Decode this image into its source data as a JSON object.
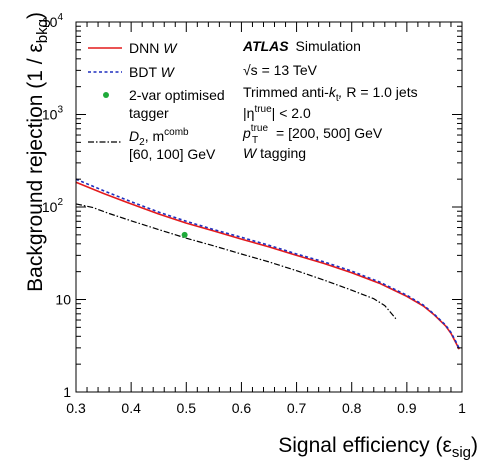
{
  "chart_data": {
    "type": "line",
    "xlabel": "Signal efficiency (ε",
    "xlabel_sub": "sig",
    "xlabel_close": ")",
    "ylabel": "Background rejection (1 / ε",
    "ylabel_sub": "bkg",
    "ylabel_close": ")",
    "xlim": [
      0.3,
      1.0
    ],
    "ylim": [
      1,
      10000
    ],
    "yscale": "log",
    "grid": false,
    "legend_position": "top-left",
    "x_ticks": [
      {
        "value": 0.3,
        "label": "0.3"
      },
      {
        "value": 0.4,
        "label": "0.4"
      },
      {
        "value": 0.5,
        "label": "0.5"
      },
      {
        "value": 0.6,
        "label": "0.6"
      },
      {
        "value": 0.7,
        "label": "0.7"
      },
      {
        "value": 0.8,
        "label": "0.8"
      },
      {
        "value": 0.9,
        "label": "0.9"
      },
      {
        "value": 1.0,
        "label": "1"
      }
    ],
    "y_ticks": [
      {
        "value": 1,
        "base": "1",
        "exp": ""
      },
      {
        "value": 10,
        "base": "10",
        "exp": ""
      },
      {
        "value": 100,
        "base": "10",
        "exp": "2"
      },
      {
        "value": 1000,
        "base": "10",
        "exp": "3"
      },
      {
        "value": 10000,
        "base": "10",
        "exp": "4"
      }
    ],
    "series": [
      {
        "name": "DNN W",
        "color": "#e41a1c",
        "style": "solid",
        "x": [
          0.3,
          0.35,
          0.4,
          0.45,
          0.5,
          0.55,
          0.6,
          0.65,
          0.7,
          0.75,
          0.8,
          0.85,
          0.9,
          0.93,
          0.95,
          0.97,
          0.98,
          0.99,
          0.995
        ],
        "y": [
          185,
          140,
          108,
          84,
          67,
          55,
          45,
          37,
          30,
          24.5,
          19.5,
          15,
          10.8,
          8.5,
          6.8,
          5.2,
          4.3,
          3.3,
          2.9
        ]
      },
      {
        "name": "BDT W",
        "color": "#1f2fbf",
        "style": "dashed",
        "x": [
          0.3,
          0.35,
          0.4,
          0.45,
          0.5,
          0.55,
          0.6,
          0.65,
          0.7,
          0.75,
          0.8,
          0.85,
          0.9,
          0.93,
          0.95,
          0.97,
          0.98,
          0.99,
          0.995
        ],
        "y": [
          200,
          150,
          114,
          88,
          70,
          57,
          47,
          38.5,
          31,
          25.5,
          20.3,
          15.5,
          11.1,
          8.7,
          6.9,
          5.3,
          4.4,
          3.4,
          2.95
        ]
      },
      {
        "name": "D2, m^comb [60, 100] GeV",
        "color": "#000000",
        "style": "dashdot",
        "x": [
          0.3,
          0.33,
          0.36,
          0.4,
          0.45,
          0.5,
          0.55,
          0.6,
          0.65,
          0.7,
          0.75,
          0.8,
          0.84,
          0.86,
          0.87,
          0.88
        ],
        "y": [
          108,
          99,
          85,
          71,
          57,
          46,
          38,
          31,
          25.5,
          20.5,
          16.2,
          12.6,
          10.2,
          8.6,
          7.3,
          6.2
        ]
      }
    ],
    "points": [
      {
        "name": "2-var optimised tagger",
        "color": "#1faa3a",
        "x": 0.497,
        "y": 50
      }
    ]
  },
  "legend": {
    "dnn": "DNN",
    "dnn_w": "W",
    "bdt": "BDT",
    "bdt_w": "W",
    "twovar_line1": "2-var optimised",
    "twovar_line2": "tagger",
    "d2_d": "D",
    "d2_sub": "2",
    "d2_sep": ", m",
    "d2_sup": "comb",
    "d2_range": "[60, 100] GeV"
  },
  "info": {
    "atlas": "ATLAS",
    "simulation": "Simulation",
    "energy": "√s = 13 TeV",
    "jets_pre": "Trimmed anti-",
    "jets_k": "k",
    "jets_ksub": "t",
    "jets_post": " R = 1.0 jets",
    "eta_pre": "|η",
    "eta_sup": "true",
    "eta_post": "| < 2.0",
    "pt_p": "p",
    "pt_sup": "true",
    "pt_sub": "T",
    "pt_post": " = [200, 500] GeV",
    "tagging_w": "W",
    "tagging_rest": " tagging"
  }
}
